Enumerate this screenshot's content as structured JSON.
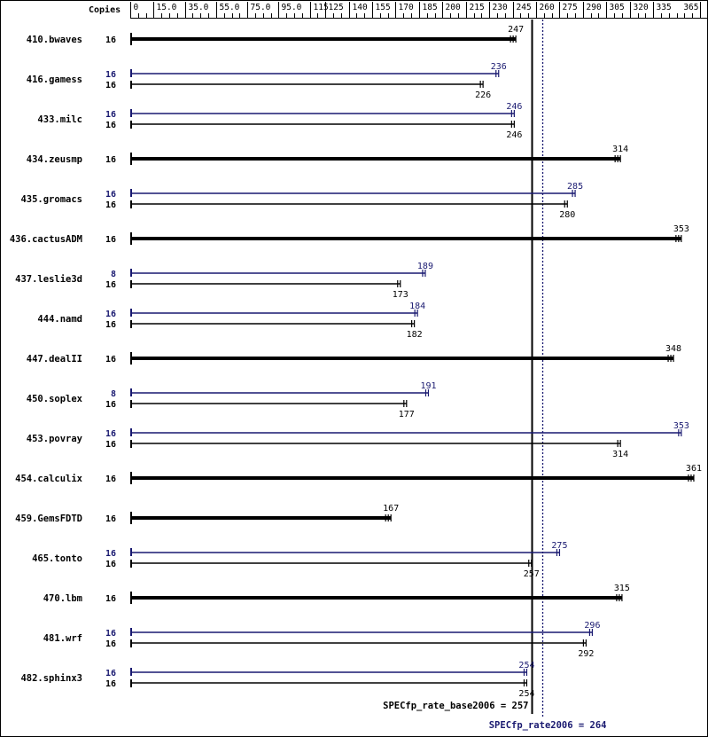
{
  "chart_data": {
    "type": "bar",
    "orientation": "horizontal",
    "header": {
      "copies_label": "Copies"
    },
    "x_ticks": [
      "0",
      "15.0",
      "35.0",
      "55.0",
      "75.0",
      "95.0",
      "115",
      "125",
      "140",
      "155",
      "170",
      "185",
      "200",
      "215",
      "230",
      "245",
      "260",
      "275",
      "290",
      "305",
      "320",
      "335",
      "365"
    ],
    "x_tick_values": [
      0,
      15,
      35,
      55,
      75,
      95,
      115,
      125,
      140,
      155,
      170,
      185,
      200,
      215,
      230,
      245,
      260,
      275,
      290,
      305,
      320,
      335,
      365
    ],
    "xlim": [
      0,
      365
    ],
    "series": [
      {
        "name": "base",
        "color": "#000000"
      },
      {
        "name": "peak",
        "color": "#191970"
      }
    ],
    "benchmarks": [
      {
        "name": "410.bwaves",
        "copies_base": "16",
        "base": 247
      },
      {
        "name": "416.gamess",
        "copies_peak": "16",
        "peak": 236,
        "copies_base": "16",
        "base": 226
      },
      {
        "name": "433.milc",
        "copies_peak": "16",
        "peak": 246,
        "copies_base": "16",
        "base": 246
      },
      {
        "name": "434.zeusmp",
        "copies_base": "16",
        "base": 314
      },
      {
        "name": "435.gromacs",
        "copies_peak": "16",
        "peak": 285,
        "copies_base": "16",
        "base": 280
      },
      {
        "name": "436.cactusADM",
        "copies_base": "16",
        "base": 353
      },
      {
        "name": "437.leslie3d",
        "copies_peak": "8",
        "peak": 189,
        "copies_base": "16",
        "base": 173
      },
      {
        "name": "444.namd",
        "copies_peak": "16",
        "peak": 184,
        "copies_base": "16",
        "base": 182
      },
      {
        "name": "447.dealII",
        "copies_base": "16",
        "base": 348
      },
      {
        "name": "450.soplex",
        "copies_peak": "8",
        "peak": 191,
        "copies_base": "16",
        "base": 177
      },
      {
        "name": "453.povray",
        "copies_peak": "16",
        "peak": 353,
        "copies_base": "16",
        "base": 314
      },
      {
        "name": "454.calculix",
        "copies_base": "16",
        "base": 361
      },
      {
        "name": "459.GemsFDTD",
        "copies_base": "16",
        "base": 167
      },
      {
        "name": "465.tonto",
        "copies_peak": "16",
        "peak": 275,
        "copies_base": "16",
        "base": 257
      },
      {
        "name": "470.lbm",
        "copies_base": "16",
        "base": 315
      },
      {
        "name": "481.wrf",
        "copies_peak": "16",
        "peak": 296,
        "copies_base": "16",
        "base": 292
      },
      {
        "name": "482.sphinx3",
        "copies_peak": "16",
        "peak": 254,
        "copies_base": "16",
        "base": 254
      }
    ],
    "reference_lines": [
      {
        "label": "SPECfp_rate_base2006 = 257",
        "value": 257,
        "style": "solid",
        "color": "#000000"
      },
      {
        "label": "SPECfp_rate2006 = 264",
        "value": 264,
        "style": "dotted",
        "color": "#191970"
      }
    ]
  }
}
